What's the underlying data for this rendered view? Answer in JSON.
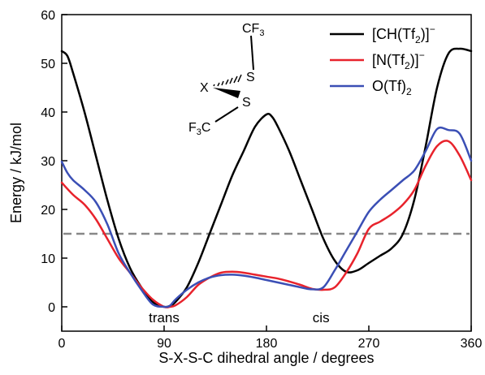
{
  "chart_data": {
    "type": "line",
    "xlabel": "S-X-S-C dihedral angle / degrees",
    "ylabel": "Energy / kJ/mol",
    "xlim": [
      0,
      360
    ],
    "ylim": [
      -5,
      60
    ],
    "xticks": [
      0,
      90,
      180,
      270,
      360
    ],
    "yticks": [
      0,
      10,
      20,
      30,
      40,
      50,
      60
    ],
    "grid": false,
    "legend_position": "top-right",
    "series": [
      {
        "name": "[CH(Tf2)]−",
        "legend_parts": {
          "pre": "[CH(Tf",
          "sub": "2",
          "mid": ")]",
          "sup": "−"
        },
        "color": "#000000",
        "x": [
          0,
          5,
          10,
          20,
          30,
          40,
          50,
          60,
          70,
          80,
          90,
          95,
          100,
          110,
          120,
          130,
          140,
          150,
          160,
          170,
          180,
          185,
          190,
          200,
          210,
          220,
          230,
          240,
          250,
          260,
          270,
          280,
          290,
          300,
          310,
          320,
          330,
          340,
          350,
          360
        ],
        "y": [
          52.5,
          51.5,
          48,
          40,
          31,
          22,
          14,
          8,
          4,
          1,
          0,
          0.2,
          1,
          4,
          9,
          15,
          21,
          27,
          32,
          37,
          39.5,
          39,
          37,
          32,
          26,
          20,
          14,
          9.5,
          7.2,
          7.5,
          9,
          10.5,
          12,
          15,
          22,
          33,
          45,
          52,
          53,
          52.5
        ]
      },
      {
        "name": "[N(Tf2)]−",
        "legend_parts": {
          "pre": "[N(Tf",
          "sub": "2",
          "mid": ")]",
          "sup": "−"
        },
        "color": "#e8232c",
        "x": [
          0,
          10,
          20,
          30,
          40,
          50,
          60,
          70,
          80,
          90,
          95,
          100,
          110,
          120,
          130,
          140,
          150,
          160,
          170,
          180,
          190,
          200,
          210,
          220,
          230,
          240,
          250,
          260,
          270,
          280,
          290,
          300,
          310,
          320,
          330,
          340,
          350,
          360
        ],
        "y": [
          25.5,
          23,
          21,
          18,
          14,
          10,
          7,
          4,
          1.5,
          0,
          0,
          0.3,
          2,
          4.5,
          6,
          7,
          7.2,
          7,
          6.6,
          6.2,
          5.8,
          5.2,
          4.5,
          3.7,
          3.5,
          4,
          7,
          11,
          16,
          17.5,
          19,
          21,
          24,
          29,
          33,
          34,
          31,
          26
        ]
      },
      {
        "name": "O(Tf)2",
        "legend_parts": {
          "pre": "O(Tf)",
          "sub": "2",
          "mid": "",
          "sup": ""
        },
        "color": "#3b4fb5",
        "x": [
          0,
          5,
          10,
          20,
          30,
          40,
          50,
          60,
          70,
          80,
          90,
          95,
          100,
          110,
          120,
          130,
          140,
          150,
          160,
          170,
          180,
          190,
          200,
          210,
          220,
          230,
          240,
          250,
          260,
          270,
          280,
          290,
          300,
          310,
          320,
          330,
          340,
          350,
          360
        ],
        "y": [
          29.8,
          27.5,
          26,
          24,
          21.5,
          17,
          11,
          7,
          3.5,
          0.5,
          0,
          0.2,
          1.5,
          3.5,
          5,
          6,
          6.5,
          6.6,
          6.4,
          6,
          5.5,
          5,
          4.5,
          4,
          3.6,
          4,
          7.5,
          11.5,
          15.5,
          19.5,
          22,
          24,
          26,
          28,
          32,
          36.5,
          36.3,
          35.5,
          30
        ]
      }
    ],
    "reference_line": {
      "y": 15,
      "color": "#888888",
      "style": "dashed"
    },
    "annotations": [
      {
        "text": "trans",
        "x": 90,
        "y": -2.2
      },
      {
        "text": "cis",
        "x": 228,
        "y": -2.2
      }
    ],
    "molecule": {
      "labels": {
        "x_atom": "X",
        "s_top": "S",
        "s_bottom": "S",
        "cf3_top": "CF",
        "cf3_top_sub": "3",
        "f3c_pre": "F",
        "f3c_sub": "3",
        "f3c_post": "C"
      }
    }
  }
}
